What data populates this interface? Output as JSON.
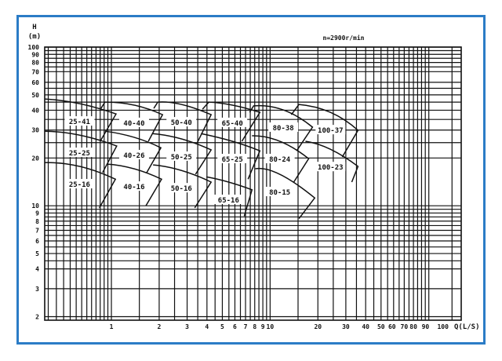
{
  "chart_data": {
    "type": "line",
    "title": "",
    "annotation": "n=2900r/min",
    "ylabel_line1": "H",
    "ylabel_line2": "(m)",
    "xlabel": "Q(L/S)",
    "x_scale": "log",
    "y_scale": "log",
    "xlim": [
      0.38,
      160
    ],
    "ylim": [
      1.9,
      100
    ],
    "grid": true,
    "x_ticks": [
      "1",
      "2",
      "3",
      "4",
      "5",
      "6",
      "7",
      "8",
      "9",
      "10",
      "20",
      "30",
      "40",
      "50",
      "60",
      "70",
      "80",
      "90",
      "100"
    ],
    "y_ticks": [
      "100",
      "90",
      "80",
      "70",
      "60",
      "50",
      "40",
      "30",
      "20",
      "10",
      "9",
      "8",
      "7",
      "6",
      "5",
      "4",
      "3",
      "2"
    ],
    "models": [
      {
        "name": "25-41",
        "hook": null,
        "curve": [
          [
            0.38,
            47.1
          ],
          [
            0.63,
            44.0
          ],
          [
            1.07,
            37.9
          ]
        ],
        "limit": [
          0.85,
          25.5
        ]
      },
      {
        "name": "25-25",
        "hook": null,
        "curve": [
          [
            0.38,
            29.5
          ],
          [
            0.63,
            27.9
          ],
          [
            1.08,
            23.8
          ]
        ],
        "limit": [
          0.88,
          16.2
        ]
      },
      {
        "name": "25-16",
        "hook": null,
        "curve": [
          [
            0.38,
            18.7
          ],
          [
            0.63,
            17.7
          ],
          [
            1.06,
            14.7
          ]
        ],
        "limit": [
          0.84,
          9.7
        ]
      },
      {
        "name": "40-40",
        "hook": [
          0.86,
          41.1
        ],
        "curve": [
          [
            0.91,
            45.0
          ],
          [
            1.39,
            43.1
          ],
          [
            2.1,
            37.5
          ]
        ],
        "limit": [
          1.71,
          25.5
        ]
      },
      {
        "name": "40-26",
        "hook": null,
        "curve": [
          [
            0.91,
            29.5
          ],
          [
            1.39,
            27.0
          ],
          [
            2.05,
            23.2
          ]
        ],
        "limit": [
          1.67,
          16.2
        ]
      },
      {
        "name": "40-16",
        "hook": null,
        "curve": [
          [
            0.94,
            18.3
          ],
          [
            1.39,
            17.1
          ],
          [
            2.07,
            14.7
          ]
        ],
        "limit": [
          1.65,
          10.0
        ]
      },
      {
        "name": "50-40",
        "hook": [
          1.85,
          41.1
        ],
        "curve": [
          [
            1.96,
            45.0
          ],
          [
            2.76,
            43.5
          ],
          [
            4.25,
            37.5
          ]
        ],
        "limit": [
          3.47,
          24.9
        ]
      },
      {
        "name": "50-25",
        "hook": null,
        "curve": [
          [
            1.81,
            28.5
          ],
          [
            2.76,
            26.4
          ],
          [
            4.25,
            22.5
          ]
        ],
        "limit": [
          3.39,
          15.8
        ]
      },
      {
        "name": "50-16",
        "hook": null,
        "curve": [
          [
            1.83,
            18.1
          ],
          [
            2.76,
            16.7
          ],
          [
            4.25,
            14.1
          ]
        ],
        "limit": [
          3.35,
          9.7
        ]
      },
      {
        "name": "65-40",
        "hook": [
          3.75,
          40.6
        ],
        "curve": [
          [
            4.11,
            45.0
          ],
          [
            5.78,
            43.1
          ],
          [
            8.62,
            38.8
          ]
        ],
        "limit": [
          6.64,
          25.5
        ]
      },
      {
        "name": "65-25",
        "hook": null,
        "curve": [
          [
            3.67,
            28.5
          ],
          [
            5.78,
            25.5
          ],
          [
            8.62,
            22.2
          ]
        ],
        "limit": [
          7.26,
          14.7
        ]
      },
      {
        "name": "65-16",
        "hook": null,
        "curve": [
          [
            3.97,
            15.2
          ],
          [
            5.47,
            14.1
          ],
          [
            7.69,
            12.6
          ]
        ],
        "limit": [
          6.87,
          8.6
        ]
      },
      {
        "name": "80-38",
        "hook": [
          7.43,
          38.8
        ],
        "curve": [
          [
            7.87,
            42.6
          ],
          [
            12.1,
            40.2
          ],
          [
            18.5,
            31.3
          ]
        ],
        "limit": [
          14.7,
          22.2
        ]
      },
      {
        "name": "80-24",
        "hook": null,
        "curve": [
          [
            7.69,
            27.6
          ],
          [
            11.5,
            25.5
          ],
          [
            17.5,
            19.8
          ]
        ],
        "limit": [
          14.1,
          14.1
        ]
      },
      {
        "name": "80-15",
        "hook": null,
        "curve": [
          [
            8.05,
            17.1
          ],
          [
            11.5,
            15.8
          ],
          [
            19.1,
            11.2
          ]
        ],
        "limit": [
          15.2,
          8.3
        ]
      },
      {
        "name": "100-37",
        "hook": [
          13.6,
          37.5
        ],
        "curve": [
          [
            15.2,
            43.5
          ],
          [
            24.0,
            38.8
          ],
          [
            35.8,
            29.9
          ]
        ],
        "limit": [
          28.5,
          20.3
        ]
      },
      {
        "name": "100-23",
        "hook": null,
        "curve": [
          [
            16.7,
            25.5
          ],
          [
            24.0,
            22.7
          ],
          [
            35.8,
            17.7
          ]
        ],
        "limit": [
          32.7,
          14.1
        ]
      }
    ]
  }
}
